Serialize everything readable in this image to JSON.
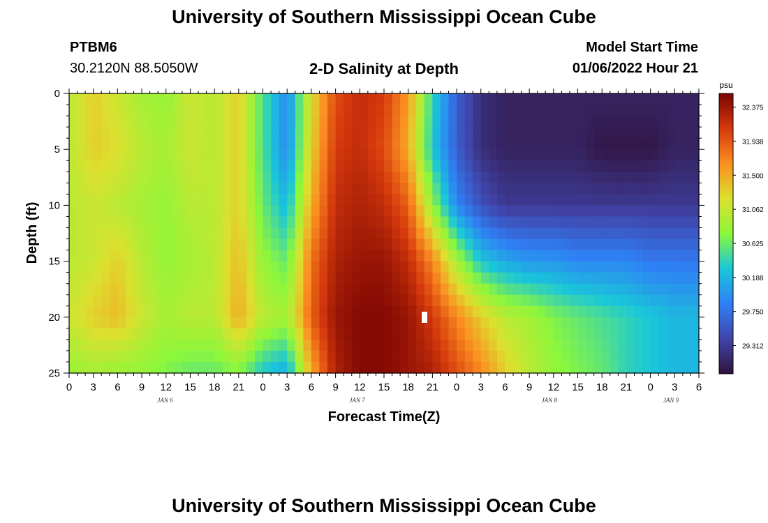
{
  "header": {
    "title": "University of Southern Mississippi Ocean Cube",
    "station": "PTBM6",
    "coords": "30.2120N  88.5050W",
    "subtitle": "2-D Salinity at Depth",
    "model_label": "Model Start Time",
    "model_time": "01/06/2022 Hour 21"
  },
  "footer": {
    "title": "University of Southern Mississippi Ocean Cube"
  },
  "chart_data": {
    "type": "heatmap",
    "title": "2-D Salinity at Depth",
    "xlabel": "Forecast Time(Z)",
    "ylabel": "Depth (ft)",
    "x_tick_labels": [
      "0",
      "3",
      "6",
      "9",
      "12",
      "15",
      "18",
      "21",
      "0",
      "3",
      "6",
      "9",
      "12",
      "15",
      "18",
      "21",
      "0",
      "3",
      "6",
      "9",
      "12",
      "15",
      "18",
      "21",
      "0",
      "3",
      "6"
    ],
    "day_labels": [
      {
        "label": "JAN 6",
        "at_hour": 15
      },
      {
        "label": "JAN 7",
        "at_hour": 45
      },
      {
        "label": "JAN 8",
        "at_hour": 75
      },
      {
        "label": "JAN 9",
        "at_hour": 94
      }
    ],
    "xlim_hours": [
      0,
      78
    ],
    "y_ticks": [
      0,
      5,
      10,
      15,
      20,
      25
    ],
    "ylim": [
      0,
      25
    ],
    "colorbar": {
      "unit": "psu",
      "ticks": [
        "32.375",
        "31.938",
        "31.500",
        "31.062",
        "30.625",
        "30.188",
        "29.750",
        "29.312"
      ],
      "range": [
        28.95,
        32.55
      ]
    },
    "depth_levels": [
      0,
      5,
      10,
      15,
      20,
      25
    ],
    "salinity_rows": [
      [
        31.0,
        31.3,
        31.1,
        30.9,
        30.8,
        31.1,
        31.0,
        31.3,
        30.5,
        29.9,
        31.2,
        32.0,
        32.2,
        32.1,
        31.6,
        30.4,
        29.6,
        29.2,
        29.1,
        29.1,
        29.1,
        29.1,
        29.1,
        29.1,
        29.1,
        29.1,
        29.1
      ],
      [
        31.0,
        31.3,
        31.2,
        31.0,
        30.9,
        31.1,
        31.0,
        31.3,
        30.5,
        29.9,
        31.3,
        32.1,
        32.2,
        32.0,
        31.5,
        30.3,
        29.6,
        29.2,
        29.1,
        29.1,
        29.1,
        29.1,
        29.0,
        29.0,
        29.0,
        29.1,
        29.1
      ],
      [
        31.0,
        31.1,
        31.0,
        30.9,
        30.8,
        31.0,
        31.0,
        31.3,
        30.6,
        30.2,
        31.5,
        32.2,
        32.3,
        32.2,
        31.9,
        30.8,
        29.9,
        29.5,
        29.3,
        29.3,
        29.3,
        29.3,
        29.3,
        29.3,
        29.3,
        29.3,
        29.3
      ],
      [
        31.0,
        31.1,
        31.3,
        31.0,
        30.8,
        30.9,
        31.0,
        31.4,
        30.8,
        30.6,
        31.8,
        32.3,
        32.4,
        32.4,
        32.2,
        31.7,
        30.9,
        30.3,
        30.1,
        30.0,
        30.0,
        29.9,
        29.9,
        29.9,
        29.8,
        29.8,
        29.8
      ],
      [
        31.1,
        31.3,
        31.4,
        31.1,
        30.9,
        31.0,
        31.0,
        31.5,
        31.0,
        30.9,
        31.9,
        32.4,
        32.5,
        32.5,
        32.4,
        32.1,
        31.7,
        31.3,
        31.0,
        30.9,
        30.7,
        30.6,
        30.5,
        30.4,
        30.3,
        30.2,
        30.2
      ],
      [
        30.8,
        30.9,
        30.8,
        30.8,
        30.7,
        30.6,
        30.6,
        30.7,
        30.3,
        30.1,
        31.5,
        32.3,
        32.5,
        32.5,
        32.4,
        32.3,
        32.0,
        31.7,
        31.3,
        31.0,
        30.8,
        30.7,
        30.6,
        30.4,
        30.3,
        30.2,
        30.2
      ]
    ]
  }
}
